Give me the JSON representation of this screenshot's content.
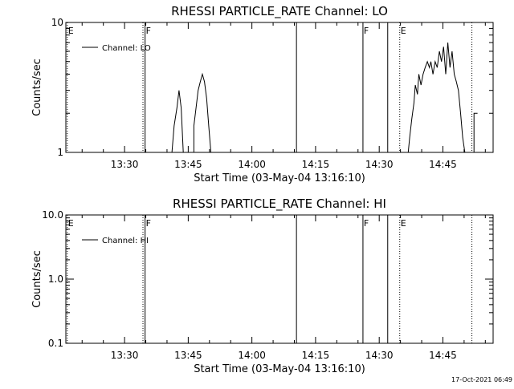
{
  "footer_timestamp": "17-Oct-2021 06:49",
  "chart_data": [
    {
      "type": "line",
      "title": "RHESSI PARTICLE_RATE Channel: LO",
      "xlabel": "Start Time (03-May-04 13:16:10)",
      "ylabel": "Counts/sec",
      "y_scale": "log",
      "xlim": [
        "13:16:10",
        "14:56:50"
      ],
      "ylim": [
        1,
        10
      ],
      "x_ticks": [
        "13:30",
        "13:45",
        "14:00",
        "14:15",
        "14:30",
        "14:45"
      ],
      "y_ticks": [
        {
          "value": 1,
          "label": "1"
        },
        {
          "value": 10,
          "label": "10"
        }
      ],
      "legend": {
        "position": "top-left",
        "label": "Channel: LO"
      },
      "markers": [
        {
          "time": "13:16:30",
          "style": "dotted",
          "label": "E"
        },
        {
          "time": "13:34:20",
          "style": "dotted",
          "label": ""
        },
        {
          "time": "13:34:50",
          "style": "solid",
          "label": "F"
        },
        {
          "time": "14:10:30",
          "style": "solid",
          "label": ""
        },
        {
          "time": "14:26:10",
          "style": "solid",
          "label": "F"
        },
        {
          "time": "14:32:00",
          "style": "solid",
          "label": ""
        },
        {
          "time": "14:34:50",
          "style": "dotted",
          "label": "E"
        },
        {
          "time": "14:51:50",
          "style": "dotted",
          "label": ""
        }
      ],
      "series": [
        {
          "points": [
            [
              "13:41:10",
              0.9
            ],
            [
              "13:41:10",
              1.0
            ],
            [
              "13:41:40",
              1.6
            ],
            [
              "13:42:20",
              2.2
            ],
            [
              "13:42:50",
              3.0
            ],
            [
              "13:43:20",
              2.2
            ],
            [
              "13:43:50",
              1.0
            ],
            [
              "13:43:50",
              0.9
            ],
            [
              "13:46:20",
              0.9
            ],
            [
              "13:46:20",
              1.6
            ],
            [
              "13:46:50",
              2.2
            ],
            [
              "13:47:20",
              3.0
            ],
            [
              "13:47:50",
              3.5
            ],
            [
              "13:48:20",
              4.0
            ],
            [
              "13:48:50",
              3.5
            ],
            [
              "13:49:20",
              2.6
            ],
            [
              "13:49:50",
              1.6
            ],
            [
              "13:50:20",
              1.0
            ],
            [
              "13:50:20",
              0.9
            ],
            [
              "14:36:50",
              0.9
            ],
            [
              "14:36:50",
              1.0
            ],
            [
              "14:37:10",
              1.3
            ],
            [
              "14:37:40",
              1.8
            ],
            [
              "14:38:10",
              2.4
            ],
            [
              "14:38:30",
              3.3
            ],
            [
              "14:39:00",
              2.8
            ],
            [
              "14:39:20",
              4.0
            ],
            [
              "14:39:50",
              3.3
            ],
            [
              "14:40:20",
              4.0
            ],
            [
              "14:40:50",
              4.5
            ],
            [
              "14:41:20",
              5.0
            ],
            [
              "14:41:50",
              4.5
            ],
            [
              "14:42:10",
              5.0
            ],
            [
              "14:42:40",
              4.0
            ],
            [
              "14:43:10",
              5.0
            ],
            [
              "14:43:40",
              4.5
            ],
            [
              "14:44:10",
              6.0
            ],
            [
              "14:44:40",
              5.0
            ],
            [
              "14:45:10",
              6.5
            ],
            [
              "14:45:40",
              4.0
            ],
            [
              "14:46:10",
              7.0
            ],
            [
              "14:46:40",
              4.5
            ],
            [
              "14:47:10",
              6.0
            ],
            [
              "14:47:40",
              4.0
            ],
            [
              "14:48:10",
              3.5
            ],
            [
              "14:48:40",
              3.0
            ],
            [
              "14:49:10",
              2.0
            ],
            [
              "14:49:40",
              1.3
            ],
            [
              "14:50:10",
              1.0
            ],
            [
              "14:50:10",
              0.9
            ],
            [
              "14:52:20",
              1.0
            ],
            [
              "14:52:20",
              2.0
            ],
            [
              "14:53:10",
              2.0
            ]
          ]
        }
      ]
    },
    {
      "type": "line",
      "title": "RHESSI PARTICLE_RATE Channel: HI",
      "xlabel": "Start Time (03-May-04 13:16:10)",
      "ylabel": "Counts/sec",
      "y_scale": "log",
      "xlim": [
        "13:16:10",
        "14:56:50"
      ],
      "ylim": [
        0.1,
        10
      ],
      "x_ticks": [
        "13:30",
        "13:45",
        "14:00",
        "14:15",
        "14:30",
        "14:45"
      ],
      "y_ticks": [
        {
          "value": 0.1,
          "label": "0.1"
        },
        {
          "value": 1,
          "label": "1.0"
        },
        {
          "value": 10,
          "label": "10.0"
        }
      ],
      "legend": {
        "position": "top-left",
        "label": "Channel: HI"
      },
      "markers": [
        {
          "time": "13:16:30",
          "style": "dotted",
          "label": "E"
        },
        {
          "time": "13:34:20",
          "style": "dotted",
          "label": ""
        },
        {
          "time": "13:34:50",
          "style": "solid",
          "label": "F"
        },
        {
          "time": "14:10:30",
          "style": "solid",
          "label": ""
        },
        {
          "time": "14:26:10",
          "style": "solid",
          "label": "F"
        },
        {
          "time": "14:32:00",
          "style": "solid",
          "label": ""
        },
        {
          "time": "14:34:50",
          "style": "dotted",
          "label": "E"
        },
        {
          "time": "14:51:50",
          "style": "dotted",
          "label": ""
        }
      ],
      "series": [
        {
          "points": []
        }
      ]
    }
  ]
}
